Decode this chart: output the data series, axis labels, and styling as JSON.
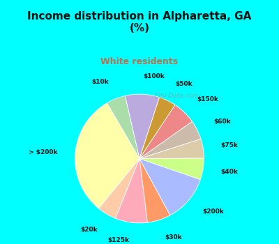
{
  "title_line1": "Income distribution in Alpharetta, GA",
  "title_line2": "(%)",
  "subtitle": "White residents",
  "title_color": "#111111",
  "subtitle_color": "#c0704a",
  "background_cyan": "#00ffff",
  "background_chart": "#dff0e8",
  "watermark": "City-Data.com",
  "labels": [
    "$100k",
    "$10k",
    "> $200k",
    "$20k",
    "$125k",
    "$30k",
    "$200k",
    "$40k",
    "$75k",
    "$60k",
    "$150k",
    "$50k"
  ],
  "values": [
    8.0,
    4.5,
    28.5,
    4.5,
    7.5,
    5.5,
    11.0,
    5.0,
    4.5,
    4.5,
    5.5,
    4.0
  ],
  "colors": [
    "#bbaadd",
    "#aaddaa",
    "#ffffaa",
    "#ffccaa",
    "#ffaabb",
    "#ff9966",
    "#aabbff",
    "#ccff88",
    "#ddccaa",
    "#ccbbaa",
    "#ee8888",
    "#cc9933"
  ],
  "startangle": 72,
  "label_fontsize": 6.5,
  "title_fontsize": 11,
  "subtitle_fontsize": 9
}
